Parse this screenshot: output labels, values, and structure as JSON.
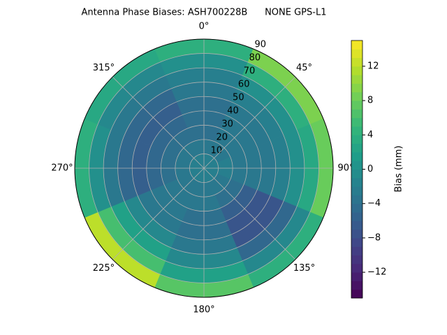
{
  "chart_data": {
    "type": "polar-contour",
    "title": "Antenna Phase Biases: ASH700228B      NONE GPS-L1",
    "azimuths": [
      0,
      45,
      90,
      135,
      180,
      225,
      270,
      315
    ],
    "radii": [
      5,
      15,
      25,
      35,
      45,
      55,
      65,
      75,
      85
    ],
    "values": [
      [
        -2,
        -3,
        -4,
        -4,
        -4,
        -3,
        -2,
        0,
        4
      ],
      [
        -2,
        -3,
        -3,
        -3,
        -3,
        -2,
        0,
        4,
        9
      ],
      [
        -2,
        -2,
        -3,
        -3,
        -3,
        -2,
        0,
        3,
        8
      ],
      [
        -2,
        -3,
        -4,
        -6,
        -7,
        -7,
        -5,
        -1,
        4
      ],
      [
        -2,
        -3,
        -3,
        -4,
        -4,
        -3,
        -1,
        2,
        7
      ],
      [
        -2,
        -3,
        -3,
        -3,
        -3,
        -1,
        2,
        6,
        12
      ],
      [
        -2,
        -3,
        -4,
        -5,
        -6,
        -5,
        -3,
        0,
        4
      ],
      [
        -2,
        -3,
        -4,
        -5,
        -6,
        -5,
        -3,
        -1,
        3
      ]
    ],
    "rlim": [
      0,
      90
    ],
    "rticks": [
      10,
      20,
      30,
      40,
      50,
      60,
      70,
      80,
      90
    ],
    "thetaticks": [
      {
        "value": 0,
        "label": "0°"
      },
      {
        "value": 45,
        "label": "45°"
      },
      {
        "value": 90,
        "label": "90°"
      },
      {
        "value": 135,
        "label": "135°"
      },
      {
        "value": 180,
        "label": "180°"
      },
      {
        "value": 225,
        "label": "225°"
      },
      {
        "value": 270,
        "label": "270°"
      },
      {
        "value": 315,
        "label": "315°"
      }
    ],
    "colorbar_label": "Bias (mm)",
    "clim": [
      -15,
      15
    ],
    "cticks": [
      {
        "value": -12,
        "label": "−12"
      },
      {
        "value": -8,
        "label": "−8"
      },
      {
        "value": -4,
        "label": "−4"
      },
      0,
      4,
      8,
      12
    ],
    "colormap": "viridis",
    "grid": true
  }
}
